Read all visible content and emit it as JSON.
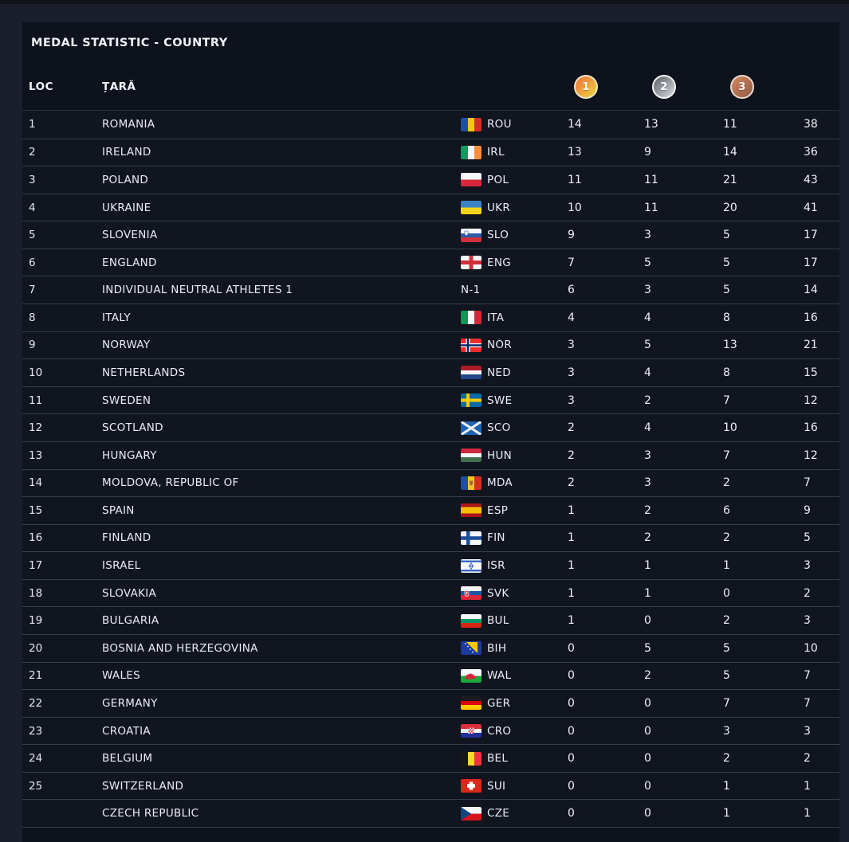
{
  "header": {
    "title": "MEDAL STATISTIC - COUNTRY"
  },
  "columns": {
    "loc": "LOC",
    "country": "ȚARĂ",
    "gold_icon": "1",
    "silver_icon": "2",
    "bronze_icon": "3"
  },
  "colors": {
    "gold_medal": "#eda23b",
    "silver_medal": "#9da1a8",
    "bronze_medal": "#b06f51",
    "panel_bg": "#0e121c",
    "row_bg": "#11151f",
    "outer_bg": "#1a1f2b",
    "divider": "#353c4b",
    "text": "#e9ecf1"
  },
  "table": {
    "rows": [
      {
        "loc": "1",
        "country": "ROMANIA",
        "code": "ROU",
        "flag": "ROU",
        "gold": "14",
        "silver": "13",
        "bronze": "11",
        "total": "38"
      },
      {
        "loc": "2",
        "country": "IRELAND",
        "code": "IRL",
        "flag": "IRL",
        "gold": "13",
        "silver": "9",
        "bronze": "14",
        "total": "36"
      },
      {
        "loc": "3",
        "country": "POLAND",
        "code": "POL",
        "flag": "POL",
        "gold": "11",
        "silver": "11",
        "bronze": "21",
        "total": "43"
      },
      {
        "loc": "4",
        "country": "UKRAINE",
        "code": "UKR",
        "flag": "UKR",
        "gold": "10",
        "silver": "11",
        "bronze": "20",
        "total": "41"
      },
      {
        "loc": "5",
        "country": "SLOVENIA",
        "code": "SLO",
        "flag": "SLO",
        "gold": "9",
        "silver": "3",
        "bronze": "5",
        "total": "17"
      },
      {
        "loc": "6",
        "country": "ENGLAND",
        "code": "ENG",
        "flag": "ENG",
        "gold": "7",
        "silver": "5",
        "bronze": "5",
        "total": "17"
      },
      {
        "loc": "7",
        "country": "INDIVIDUAL NEUTRAL ATHLETES 1",
        "code": "N-1",
        "flag": null,
        "gold": "6",
        "silver": "3",
        "bronze": "5",
        "total": "14"
      },
      {
        "loc": "8",
        "country": "ITALY",
        "code": "ITA",
        "flag": "ITA",
        "gold": "4",
        "silver": "4",
        "bronze": "8",
        "total": "16"
      },
      {
        "loc": "9",
        "country": "NORWAY",
        "code": "NOR",
        "flag": "NOR",
        "gold": "3",
        "silver": "5",
        "bronze": "13",
        "total": "21"
      },
      {
        "loc": "10",
        "country": "NETHERLANDS",
        "code": "NED",
        "flag": "NED",
        "gold": "3",
        "silver": "4",
        "bronze": "8",
        "total": "15"
      },
      {
        "loc": "11",
        "country": "SWEDEN",
        "code": "SWE",
        "flag": "SWE",
        "gold": "3",
        "silver": "2",
        "bronze": "7",
        "total": "12"
      },
      {
        "loc": "12",
        "country": "SCOTLAND",
        "code": "SCO",
        "flag": "SCO",
        "gold": "2",
        "silver": "4",
        "bronze": "10",
        "total": "16"
      },
      {
        "loc": "13",
        "country": "HUNGARY",
        "code": "HUN",
        "flag": "HUN",
        "gold": "2",
        "silver": "3",
        "bronze": "7",
        "total": "12"
      },
      {
        "loc": "14",
        "country": "MOLDOVA, REPUBLIC OF",
        "code": "MDA",
        "flag": "MDA",
        "gold": "2",
        "silver": "3",
        "bronze": "2",
        "total": "7"
      },
      {
        "loc": "15",
        "country": "SPAIN",
        "code": "ESP",
        "flag": "ESP",
        "gold": "1",
        "silver": "2",
        "bronze": "6",
        "total": "9"
      },
      {
        "loc": "16",
        "country": "FINLAND",
        "code": "FIN",
        "flag": "FIN",
        "gold": "1",
        "silver": "2",
        "bronze": "2",
        "total": "5"
      },
      {
        "loc": "17",
        "country": "ISRAEL",
        "code": "ISR",
        "flag": "ISR",
        "gold": "1",
        "silver": "1",
        "bronze": "1",
        "total": "3"
      },
      {
        "loc": "18",
        "country": "SLOVAKIA",
        "code": "SVK",
        "flag": "SVK",
        "gold": "1",
        "silver": "1",
        "bronze": "0",
        "total": "2"
      },
      {
        "loc": "19",
        "country": "BULGARIA",
        "code": "BUL",
        "flag": "BUL",
        "gold": "1",
        "silver": "0",
        "bronze": "2",
        "total": "3"
      },
      {
        "loc": "20",
        "country": "BOSNIA AND HERZEGOVINA",
        "code": "BIH",
        "flag": "BIH",
        "gold": "0",
        "silver": "5",
        "bronze": "5",
        "total": "10"
      },
      {
        "loc": "21",
        "country": "WALES",
        "code": "WAL",
        "flag": "WAL",
        "gold": "0",
        "silver": "2",
        "bronze": "5",
        "total": "7"
      },
      {
        "loc": "22",
        "country": "GERMANY",
        "code": "GER",
        "flag": "GER",
        "gold": "0",
        "silver": "0",
        "bronze": "7",
        "total": "7"
      },
      {
        "loc": "23",
        "country": "CROATIA",
        "code": "CRO",
        "flag": "CRO",
        "gold": "0",
        "silver": "0",
        "bronze": "3",
        "total": "3"
      },
      {
        "loc": "24",
        "country": "BELGIUM",
        "code": "BEL",
        "flag": "BEL",
        "gold": "0",
        "silver": "0",
        "bronze": "2",
        "total": "2"
      },
      {
        "loc": "25",
        "country": "SWITZERLAND",
        "code": "SUI",
        "flag": "SUI",
        "gold": "0",
        "silver": "0",
        "bronze": "1",
        "total": "1"
      },
      {
        "loc": "",
        "country": "CZECH REPUBLIC",
        "code": "CZE",
        "flag": "CZE",
        "gold": "0",
        "silver": "0",
        "bronze": "1",
        "total": "1"
      }
    ]
  }
}
